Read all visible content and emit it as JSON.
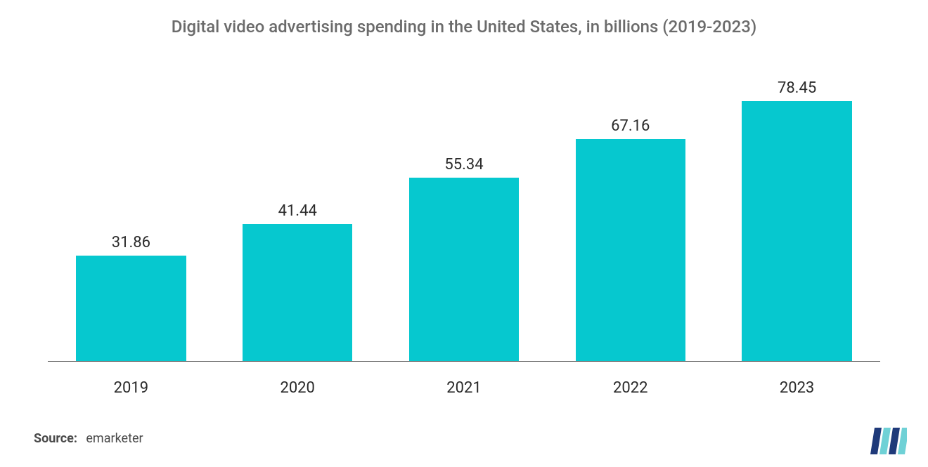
{
  "chart": {
    "type": "bar",
    "title": "Digital video advertising spending in the United States, in billions (2019-2023)",
    "title_fontsize": 24,
    "title_color": "#6b6b6b",
    "categories": [
      "2019",
      "2020",
      "2021",
      "2022",
      "2023"
    ],
    "values": [
      31.86,
      41.44,
      55.34,
      67.16,
      78.45
    ],
    "value_labels": [
      "31.86",
      "41.44",
      "55.34",
      "67.16",
      "78.45"
    ],
    "bar_color": "#06c8cf",
    "bar_width_ratio": 0.66,
    "background_color": "#ffffff",
    "axis_color": "#555555",
    "value_label_fontsize": 22,
    "value_label_color": "#2b2b2b",
    "xlabel_fontsize": 22,
    "xlabel_color": "#2b2b2b",
    "ymax": 90,
    "grid": false
  },
  "source": {
    "label": "Source:",
    "value": "emarketer",
    "fontsize": 18,
    "label_color": "#4a4a4a",
    "value_color": "#4a4a4a"
  },
  "logo": {
    "stripe_colors": [
      "#1f3a7a",
      "#6fd1d6",
      "#1f3a7a",
      "#6fd1d6"
    ]
  }
}
